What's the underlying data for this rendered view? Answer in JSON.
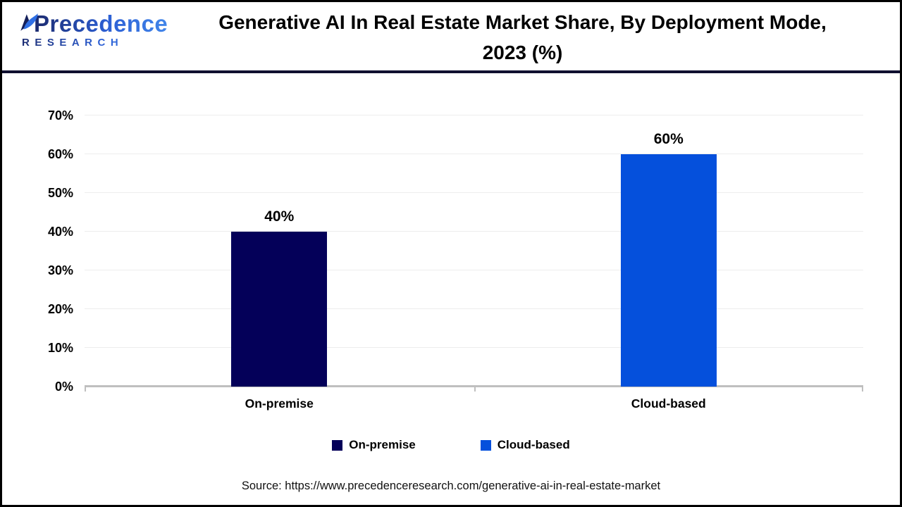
{
  "header": {
    "logo": {
      "name": "Precedence",
      "subtitle": "RESEARCH",
      "icon": "leaf-icon"
    },
    "title_lines": [
      "Generative AI In Real Estate Market Share, By Deployment Mode,",
      "2023 (%)"
    ]
  },
  "chart_data": {
    "type": "bar",
    "title": "Generative AI In Real Estate Market Share, By Deployment Mode, 2023 (%)",
    "categories": [
      "On-premise",
      "Cloud-based"
    ],
    "values": [
      40,
      60
    ],
    "data_labels": [
      "40%",
      "60%"
    ],
    "bar_colors": [
      "#040059",
      "#0550DC"
    ],
    "ylim": [
      0,
      70
    ],
    "yticks": [
      0,
      10,
      20,
      30,
      40,
      50,
      60,
      70
    ],
    "ytick_labels": [
      "0%",
      "10%",
      "20%",
      "30%",
      "40%",
      "50%",
      "60%",
      "70%"
    ],
    "grid": true,
    "legend": [
      {
        "label": "On-premise",
        "color": "#040059"
      },
      {
        "label": "Cloud-based",
        "color": "#0550DC"
      }
    ],
    "legend_position": "bottom"
  },
  "footer": {
    "source": "Source: https://www.precedenceresearch.com/generative-ai-in-real-estate-market"
  },
  "colors": {
    "bar_navy": "#040059",
    "bar_blue": "#0550DC",
    "axis_line": "#BFBFBF",
    "gridline": "#EDEDED",
    "header_rule": "#101030",
    "brand_gradient": [
      "#1B2A6E",
      "#2C5FD4",
      "#4286EA"
    ]
  }
}
